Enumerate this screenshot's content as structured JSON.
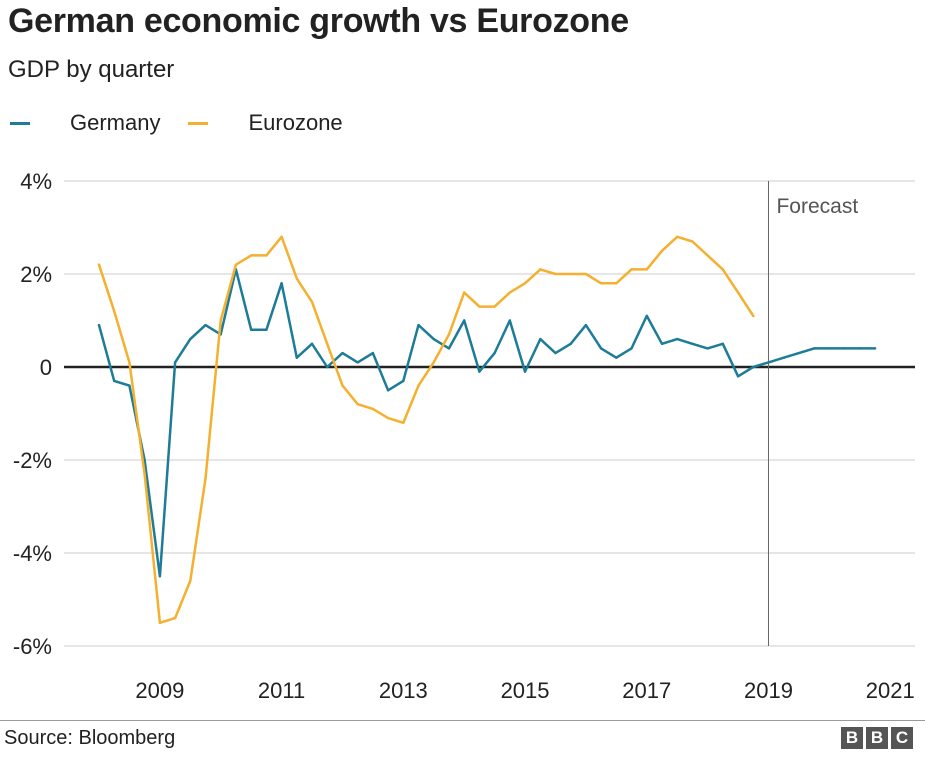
{
  "chart_data": {
    "type": "line",
    "title": "German economic growth vs Eurozone",
    "subtitle": "GDP by quarter",
    "source": "Source: Bloomberg",
    "logo": "BBC",
    "xlabel": "",
    "ylabel": "",
    "xlim": [
      2008.0,
      2021.5
    ],
    "ylim": [
      -6,
      4
    ],
    "y_ticks": [
      4,
      2,
      0,
      -2,
      -4,
      -6
    ],
    "y_tick_labels": [
      "4%",
      "2%",
      "0",
      "-2%",
      "-4%",
      "-6%"
    ],
    "x_ticks": [
      2009,
      2011,
      2013,
      2015,
      2017,
      2019,
      2021
    ],
    "x_tick_labels": [
      "2009",
      "2011",
      "2013",
      "2015",
      "2017",
      "2019",
      "2021"
    ],
    "grid": true,
    "legend_position": "top-left",
    "annotation": {
      "label": "Forecast",
      "x": 2019.0
    },
    "series": [
      {
        "name": "Germany",
        "color": "#1d7c97",
        "x": [
          2008.0,
          2008.25,
          2008.5,
          2008.75,
          2009.0,
          2009.25,
          2009.5,
          2009.75,
          2010.0,
          2010.25,
          2010.5,
          2010.75,
          2011.0,
          2011.25,
          2011.5,
          2011.75,
          2012.0,
          2012.25,
          2012.5,
          2012.75,
          2013.0,
          2013.25,
          2013.5,
          2013.75,
          2014.0,
          2014.25,
          2014.5,
          2014.75,
          2015.0,
          2015.25,
          2015.5,
          2015.75,
          2016.0,
          2016.25,
          2016.5,
          2016.75,
          2017.0,
          2017.25,
          2017.5,
          2017.75,
          2018.0,
          2018.25,
          2018.5,
          2018.75,
          2019.0,
          2019.25,
          2019.5,
          2019.75,
          2020.0,
          2020.25,
          2020.5,
          2020.75
        ],
        "values": [
          0.9,
          -0.3,
          -0.4,
          -2.0,
          -4.5,
          0.1,
          0.6,
          0.9,
          0.7,
          2.1,
          0.8,
          0.8,
          1.8,
          0.2,
          0.5,
          0.0,
          0.3,
          0.1,
          0.3,
          -0.5,
          -0.3,
          0.9,
          0.6,
          0.4,
          1.0,
          -0.1,
          0.3,
          1.0,
          -0.1,
          0.6,
          0.3,
          0.5,
          0.9,
          0.4,
          0.2,
          0.4,
          1.1,
          0.5,
          0.6,
          0.5,
          0.4,
          0.5,
          -0.2,
          0.0,
          0.1,
          0.2,
          0.3,
          0.4,
          0.4,
          0.4,
          0.4,
          0.4
        ]
      },
      {
        "name": "Eurozone",
        "color": "#f4b02e",
        "x": [
          2008.0,
          2008.25,
          2008.5,
          2008.75,
          2009.0,
          2009.25,
          2009.5,
          2009.75,
          2010.0,
          2010.25,
          2010.5,
          2010.75,
          2011.0,
          2011.25,
          2011.5,
          2011.75,
          2012.0,
          2012.25,
          2012.5,
          2012.75,
          2013.0,
          2013.25,
          2013.5,
          2013.75,
          2014.0,
          2014.25,
          2014.5,
          2014.75,
          2015.0,
          2015.25,
          2015.5,
          2015.75,
          2016.0,
          2016.25,
          2016.5,
          2016.75,
          2017.0,
          2017.25,
          2017.5,
          2017.75,
          2018.0,
          2018.25,
          2018.5,
          2018.75
        ],
        "values": [
          2.2,
          1.2,
          0.1,
          -2.3,
          -5.5,
          -5.4,
          -4.6,
          -2.4,
          1.0,
          2.2,
          2.4,
          2.4,
          2.8,
          1.9,
          1.4,
          0.5,
          -0.4,
          -0.8,
          -0.9,
          -1.1,
          -1.2,
          -0.4,
          0.1,
          0.7,
          1.6,
          1.3,
          1.3,
          1.6,
          1.8,
          2.1,
          2.0,
          2.0,
          2.0,
          1.8,
          1.8,
          2.1,
          2.1,
          2.5,
          2.8,
          2.7,
          2.4,
          2.1,
          1.6,
          1.1
        ]
      }
    ]
  }
}
